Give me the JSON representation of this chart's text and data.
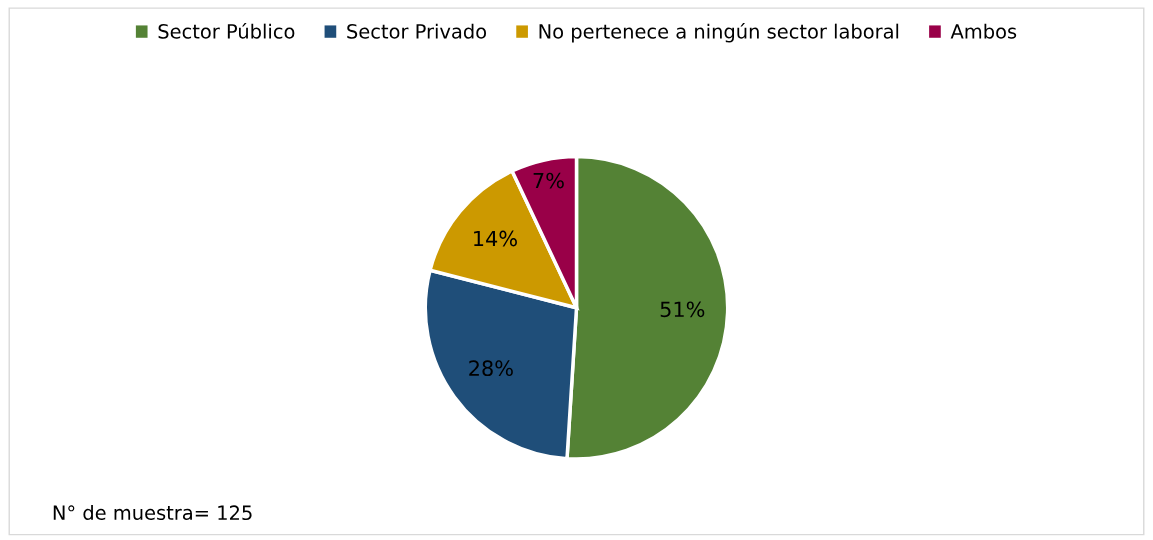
{
  "chart_data": {
    "type": "pie",
    "categories": [
      "Sector Público",
      "Sector Privado",
      "No pertenece a ningún sector laboral",
      "Ambos"
    ],
    "values": [
      51,
      28,
      14,
      7
    ],
    "colors": [
      "#548235",
      "#1f4e79",
      "#cc9900",
      "#990048"
    ],
    "value_labels": [
      "51%",
      "28%",
      "14%",
      "7%"
    ],
    "legend": "top",
    "annotations": [
      "N° de muestra= 125"
    ]
  }
}
